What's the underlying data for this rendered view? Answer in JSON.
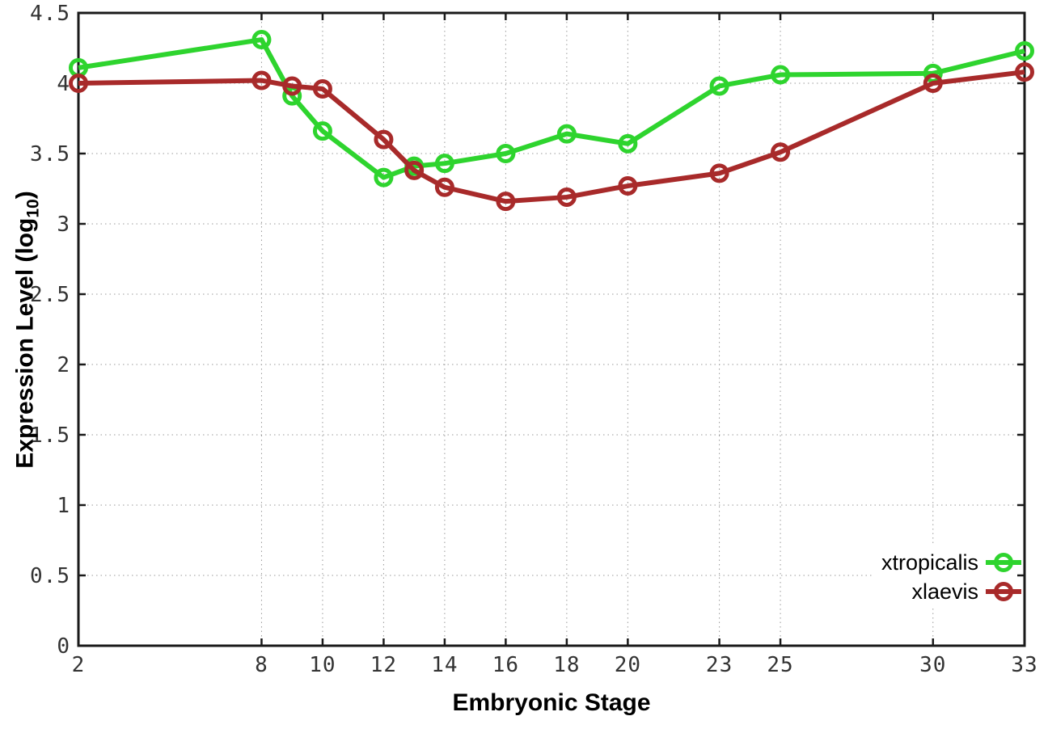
{
  "figure": {
    "xlabel": "Embryonic Stage",
    "ylabel": "Expression Level (log10)",
    "ylabel_parts": {
      "main": "Expression Level (log",
      "sub": "10",
      "close": ")"
    },
    "background_color": "#ffffff",
    "border_color": "#1a1a1a",
    "grid_color": "#999999",
    "tick_label_color": "#333333"
  },
  "chart_data": {
    "type": "line",
    "x": [
      2,
      8,
      9,
      10,
      12,
      13,
      14,
      16,
      18,
      20,
      23,
      25,
      30,
      33
    ],
    "series": [
      {
        "name": "xtropicalis",
        "color": "#2ed42e",
        "values": [
          4.11,
          4.31,
          3.91,
          3.66,
          3.33,
          3.41,
          3.43,
          3.5,
          3.64,
          3.57,
          3.98,
          4.06,
          4.07,
          4.23
        ]
      },
      {
        "name": "xlaevis",
        "color": "#a82a2a",
        "values": [
          4.0,
          4.02,
          3.98,
          3.96,
          3.6,
          3.38,
          3.26,
          3.16,
          3.19,
          3.27,
          3.36,
          3.51,
          4.0,
          4.08
        ]
      }
    ],
    "title": "",
    "xlabel": "Embryonic Stage",
    "ylabel": "Expression Level (log10)",
    "xlim": [
      2,
      33
    ],
    "ylim": [
      0,
      4.5
    ],
    "xticks": [
      2,
      8,
      10,
      12,
      14,
      16,
      18,
      20,
      23,
      25,
      30,
      33
    ],
    "xtick_labels": [
      "2",
      "8",
      "10",
      "12",
      "14",
      "16",
      "18",
      "20",
      "23",
      "25",
      "30",
      "33"
    ],
    "yticks": [
      0,
      0.5,
      1,
      1.5,
      2,
      2.5,
      3,
      3.5,
      4,
      4.5
    ],
    "ytick_labels": [
      "0",
      "0.5",
      "1",
      "1.5",
      "2",
      "2.5",
      "3",
      "3.5",
      "4",
      "4.5"
    ],
    "grid": true,
    "legend_position": "bottom-right",
    "marker": "open-circle",
    "line_width": 6,
    "marker_radius": 9.5,
    "marker_stroke": 5
  }
}
